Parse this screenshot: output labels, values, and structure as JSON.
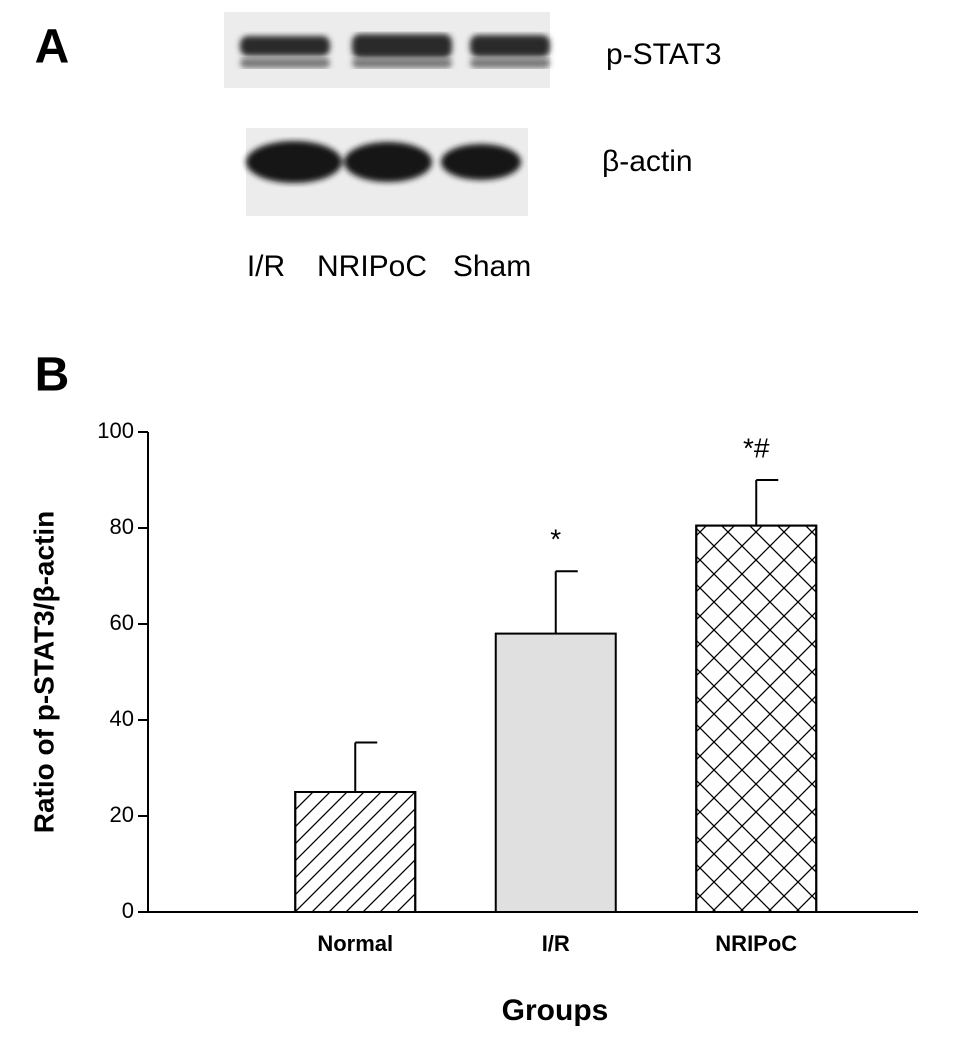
{
  "panel_a": {
    "label": "A",
    "bands": [
      "p-STAT3",
      "β-actin"
    ],
    "lanes": [
      "I/R",
      "NRIPoC",
      "Sham"
    ]
  },
  "chart_data": {
    "type": "bar",
    "panel_label": "B",
    "categories": [
      "Normal",
      "I/R",
      "NRIPoC"
    ],
    "values": [
      25,
      58,
      80.5
    ],
    "errors": [
      10.3,
      13,
      9.5
    ],
    "colors": [
      "#ffffff",
      "#e0e0e0",
      "#ffffff"
    ],
    "patterns": [
      "diagonal",
      "solid",
      "crosshatch"
    ],
    "annotations": [
      null,
      "*",
      "*#"
    ],
    "xlabel": "Groups",
    "ylabel": "Ratio of p-STAT3/β-actin",
    "ylim": [
      0,
      100
    ],
    "yticks": [
      0,
      20,
      40,
      60,
      80,
      100
    ],
    "grid": false
  }
}
